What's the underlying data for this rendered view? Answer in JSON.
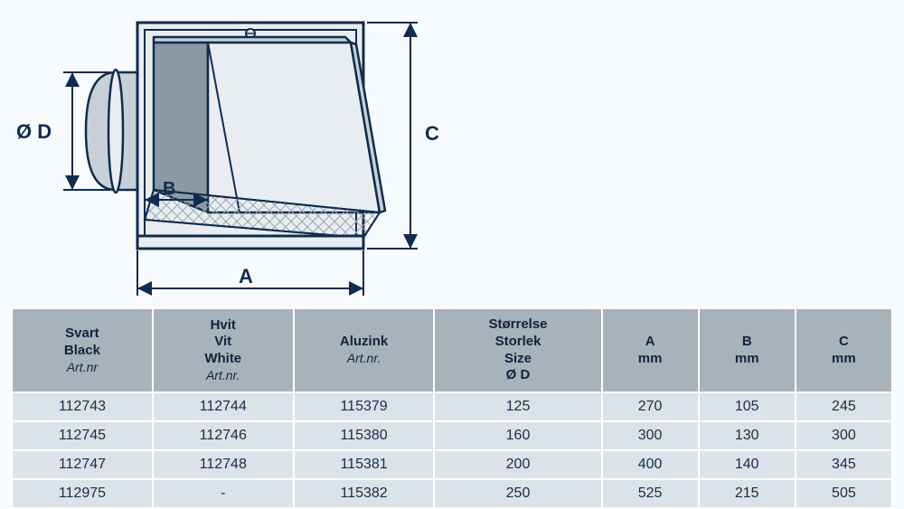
{
  "diagram": {
    "labels": {
      "A": "A",
      "B": "B",
      "C": "C",
      "D": "Ø D"
    },
    "stroke": "#0f2c4e",
    "fill_light": "#e9edf1",
    "fill_mid": "#c8d0d7",
    "fill_dark": "#8c99a5",
    "mesh": "#9aa6b0",
    "label_fontsize": 22
  },
  "table": {
    "header_bg": "#a8b2bb",
    "row_bg": "#dbe2e8",
    "border_color": "#ffffff",
    "text_color": "#11233d",
    "header_fontsize": 15,
    "cell_fontsize": 16,
    "column_widths_pct": [
      16,
      16,
      16,
      19,
      11,
      11,
      11
    ],
    "headers": [
      {
        "lines": [
          "Svart",
          "Black"
        ],
        "sub": "Art.nr"
      },
      {
        "lines": [
          "Hvit",
          "Vit",
          "White"
        ],
        "sub": "Art.nr."
      },
      {
        "lines": [
          "Aluzink"
        ],
        "sub": "Art.nr."
      },
      {
        "lines": [
          "Størrelse",
          "Storlek",
          "Size",
          "Ø D"
        ],
        "sub": null
      },
      {
        "lines": [
          "A",
          "mm"
        ],
        "sub": null
      },
      {
        "lines": [
          "B",
          "mm"
        ],
        "sub": null
      },
      {
        "lines": [
          "C",
          "mm"
        ],
        "sub": null
      }
    ],
    "rows": [
      [
        "112743",
        "112744",
        "115379",
        "125",
        "270",
        "105",
        "245"
      ],
      [
        "112745",
        "112746",
        "115380",
        "160",
        "300",
        "130",
        "300"
      ],
      [
        "112747",
        "112748",
        "115381",
        "200",
        "400",
        "140",
        "345"
      ],
      [
        "112975",
        "-",
        "115382",
        "250",
        "525",
        "215",
        "505"
      ]
    ]
  }
}
